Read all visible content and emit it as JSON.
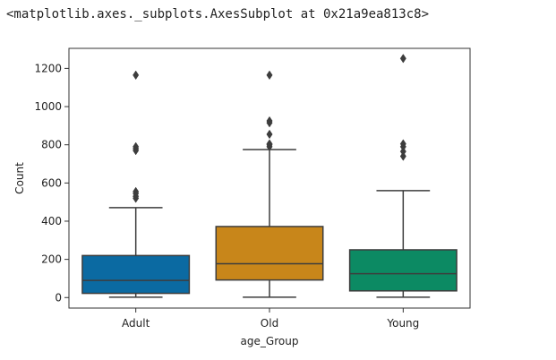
{
  "output_repr": "<matplotlib.axes._subplots.AxesSubplot at 0x21a9ea813c8>",
  "chart_data": {
    "type": "box",
    "xlabel": "age_Group",
    "ylabel": "Count",
    "ylim": [
      -55,
      1305
    ],
    "yticks": [
      0,
      200,
      400,
      600,
      800,
      1000,
      1200
    ],
    "grid": false,
    "categories": [
      "Adult",
      "Old",
      "Young"
    ],
    "colors": [
      "#0b6aa2",
      "#c8861a",
      "#0c8a63"
    ],
    "boxes": [
      {
        "category": "Adult",
        "whisker_low": 2,
        "q1": 22,
        "median": 90,
        "q3": 220,
        "whisker_high": 471,
        "outliers": [
          520,
          530,
          545,
          555,
          770,
          780,
          790,
          1165
        ]
      },
      {
        "category": "Old",
        "whisker_low": 2,
        "q1": 92,
        "median": 177,
        "q3": 372,
        "whisker_high": 775,
        "outliers": [
          790,
          800,
          805,
          855,
          915,
          925,
          1165
        ]
      },
      {
        "category": "Young",
        "whisker_low": 2,
        "q1": 35,
        "median": 125,
        "q3": 250,
        "whisker_high": 560,
        "outliers": [
          740,
          765,
          790,
          805,
          1252
        ]
      }
    ]
  }
}
